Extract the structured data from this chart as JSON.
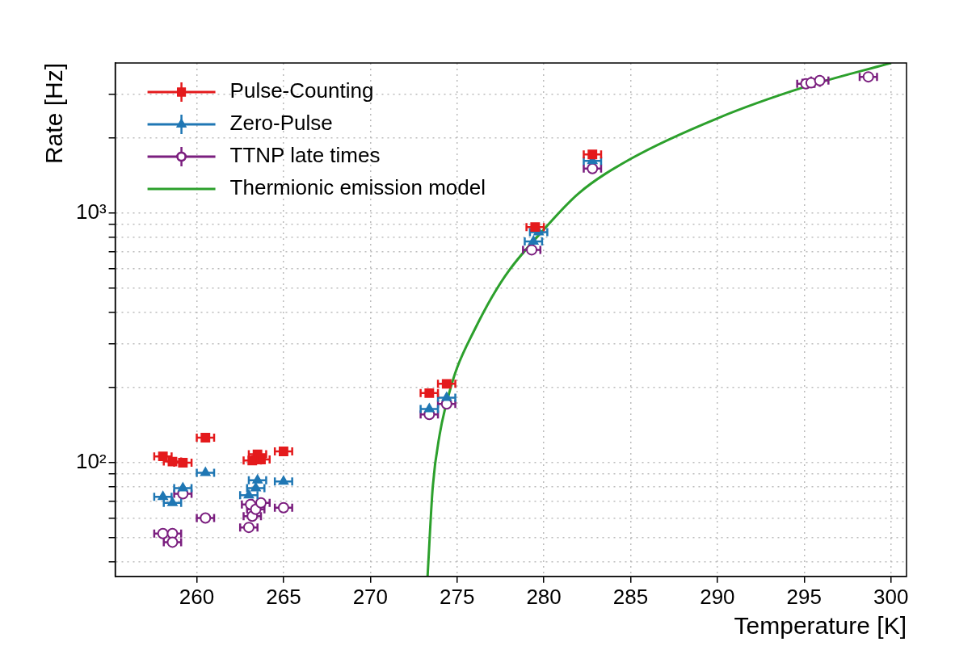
{
  "chart_data": {
    "type": "scatter",
    "xlabel": "Temperature [K]",
    "ylabel": "Rate [Hz]",
    "log": "y",
    "grid": true,
    "legend": "top left",
    "xlim": [
      255.3,
      300.9
    ],
    "xticks": [
      260,
      265,
      270,
      275,
      280,
      285,
      290,
      295,
      300
    ],
    "ylim": [
      35,
      4000
    ],
    "yticks": [
      {
        "value": 40,
        "label": null
      },
      {
        "value": 50,
        "label": null
      },
      {
        "value": 60,
        "label": null
      },
      {
        "value": 70,
        "label": null
      },
      {
        "value": 80,
        "label": null
      },
      {
        "value": 90,
        "label": null
      },
      {
        "value": 100,
        "label": "10²"
      },
      {
        "value": 200,
        "label": null
      },
      {
        "value": 300,
        "label": null
      },
      {
        "value": 400,
        "label": null
      },
      {
        "value": 500,
        "label": null
      },
      {
        "value": 600,
        "label": null
      },
      {
        "value": 700,
        "label": null
      },
      {
        "value": 800,
        "label": null
      },
      {
        "value": 900,
        "label": null
      },
      {
        "value": 1000,
        "label": "10³"
      },
      {
        "value": 2000,
        "label": null
      },
      {
        "value": 3000,
        "label": null
      }
    ],
    "series": [
      {
        "name": "Pulse-Counting",
        "color": "#e41a1c",
        "marker": "square",
        "x": [
          258.05,
          258.6,
          259.2,
          260.5,
          263.2,
          263.5,
          263.7,
          265.0,
          273.4,
          274.4,
          279.5,
          282.8
        ],
        "values": [
          106,
          101,
          100,
          126,
          102,
          108,
          103,
          111,
          190,
          207,
          880,
          1720
        ],
        "xerrors": [
          0.5,
          0.5,
          0.5,
          0.5,
          0.5,
          0.5,
          0.5,
          0.5,
          0.5,
          0.5,
          0.5,
          0.5
        ]
      },
      {
        "name": "Zero-Pulse",
        "color": "#1f77b4",
        "marker": "triangle",
        "x": [
          258.05,
          258.6,
          259.2,
          260.5,
          263.0,
          263.4,
          263.5,
          265.0,
          273.4,
          274.4,
          279.4,
          279.7,
          282.8
        ],
        "values": [
          73,
          69,
          79,
          91,
          74,
          79,
          85,
          84,
          164,
          182,
          770,
          840,
          1620
        ],
        "xerrors": [
          0.5,
          0.5,
          0.5,
          0.5,
          0.5,
          0.5,
          0.5,
          0.5,
          0.5,
          0.5,
          0.5,
          0.5,
          0.5
        ]
      },
      {
        "name": "TTNP late times",
        "color": "#7b1f7f",
        "marker": "circle",
        "x": [
          258.05,
          258.6,
          258.6,
          259.2,
          260.5,
          263.0,
          263.1,
          263.2,
          263.4,
          263.7,
          265.0,
          273.4,
          274.4,
          279.3,
          282.8,
          295.1,
          295.4,
          295.9,
          298.7
        ],
        "values": [
          52,
          52,
          48,
          75,
          60,
          55,
          68,
          61,
          65,
          69,
          66,
          156,
          172,
          713,
          1510,
          3300,
          3330,
          3400,
          3520
        ],
        "xerrors": [
          0.5,
          0.5,
          0.5,
          0.5,
          0.5,
          0.5,
          0.5,
          0.5,
          0.5,
          0.5,
          0.5,
          0.5,
          0.5,
          0.5,
          0.5,
          0.5,
          0.5,
          0.5,
          0.5
        ]
      },
      {
        "name": "Thermionic emission model",
        "color": "#2ca02c",
        "type": "line",
        "marker": "none",
        "x": [
          273.3,
          273.6,
          274,
          274.5,
          275,
          276,
          277,
          278,
          280,
          282,
          285,
          290,
          295,
          300
        ],
        "values": [
          35,
          80,
          130,
          185,
          240,
          340,
          460,
          590,
          860,
          1200,
          1650,
          2400,
          3200,
          4000
        ]
      }
    ]
  }
}
